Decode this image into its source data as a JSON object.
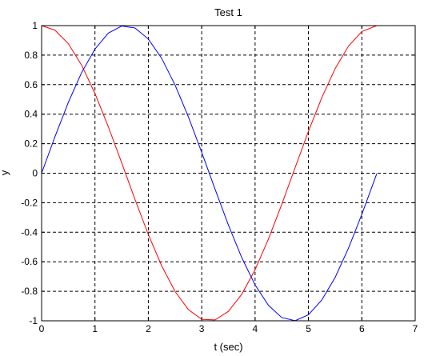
{
  "chart_data": {
    "type": "line",
    "title": "Test 1",
    "xlabel": "t (sec)",
    "ylabel": "y",
    "xlim": [
      0,
      7
    ],
    "ylim": [
      -1,
      1
    ],
    "grid": true,
    "xticks": [
      "0",
      "1",
      "2",
      "3",
      "4",
      "5",
      "6",
      "7"
    ],
    "yticks": [
      "1",
      "0.8",
      "0.6",
      "0.4",
      "0.2",
      "0",
      "-0.2",
      "-0.4",
      "-0.6",
      "-0.8",
      "-1"
    ],
    "series": [
      {
        "color": "#ff0000",
        "x": [
          0,
          0.25,
          0.5,
          0.75,
          1.0,
          1.25,
          1.5,
          1.75,
          2.0,
          2.25,
          2.5,
          2.75,
          3.0,
          3.25,
          3.5,
          3.75,
          4.0,
          4.25,
          4.5,
          4.75,
          5.0,
          5.25,
          5.5,
          5.75,
          6.0,
          6.28
        ],
        "y": [
          1.0,
          0.969,
          0.878,
          0.732,
          0.54,
          0.315,
          0.071,
          -0.178,
          -0.416,
          -0.628,
          -0.801,
          -0.924,
          -0.99,
          -0.994,
          -0.936,
          -0.82,
          -0.654,
          -0.446,
          -0.211,
          0.038,
          0.284,
          0.512,
          0.709,
          0.861,
          0.96,
          1.0
        ]
      },
      {
        "color": "#0000ff",
        "x": [
          0,
          0.25,
          0.5,
          0.75,
          1.0,
          1.25,
          1.5,
          1.75,
          2.0,
          2.25,
          2.5,
          2.75,
          3.0,
          3.25,
          3.5,
          3.75,
          4.0,
          4.25,
          4.5,
          4.75,
          5.0,
          5.25,
          5.5,
          5.75,
          6.0,
          6.28
        ],
        "y": [
          0.0,
          0.247,
          0.479,
          0.682,
          0.841,
          0.949,
          0.997,
          0.984,
          0.909,
          0.778,
          0.598,
          0.382,
          0.141,
          -0.108,
          -0.351,
          -0.572,
          -0.757,
          -0.895,
          -0.978,
          -0.999,
          -0.959,
          -0.859,
          -0.706,
          -0.508,
          -0.279,
          -0.003
        ]
      }
    ]
  }
}
